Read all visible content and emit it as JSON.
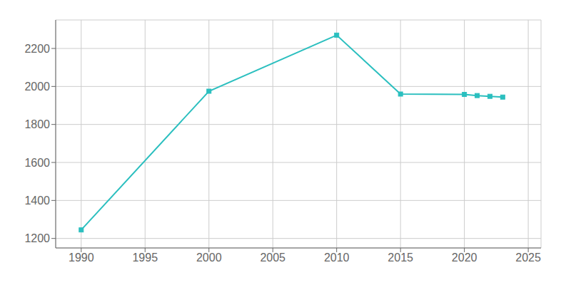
{
  "chart_data": {
    "type": "line",
    "x": [
      1990,
      2000,
      2010,
      2015,
      2020,
      2021,
      2022,
      2023
    ],
    "values": [
      1245,
      1975,
      2270,
      1960,
      1958,
      1952,
      1948,
      1944
    ],
    "color": "#2bbfbf",
    "marker": "square",
    "xlim": [
      1988,
      2026
    ],
    "ylim": [
      1150,
      2350
    ],
    "xticks": [
      1990,
      1995,
      2000,
      2005,
      2010,
      2015,
      2020,
      2025
    ],
    "yticks": [
      1200,
      1400,
      1600,
      1800,
      2000,
      2200
    ],
    "grid": true
  }
}
